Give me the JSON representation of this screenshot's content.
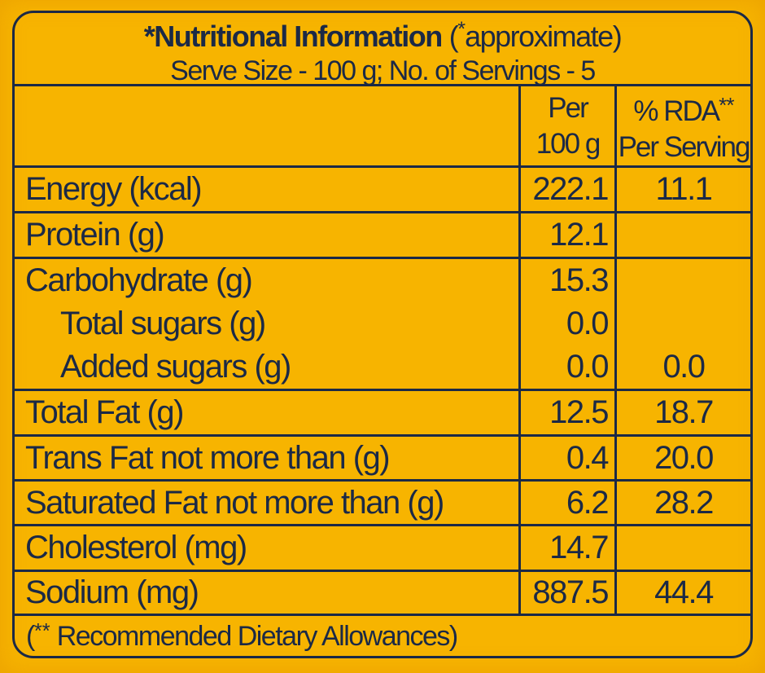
{
  "colors": {
    "background": "#F7B400",
    "ink": "#1B2946"
  },
  "header": {
    "title_bold": "*Nutritional Information",
    "approx_prefix": "(",
    "approx_sup": "*",
    "approx_suffix": "approximate)",
    "serve_info": "Serve Size - 100 g; No. of Servings - 5"
  },
  "columns": {
    "per_line1": "Per",
    "per_line2": "100 g",
    "rda_text": "% RDA",
    "rda_sup": "**",
    "rda_line2": "Per Serving"
  },
  "rows": [
    {
      "label": "Energy (kcal)",
      "per_100g": "222.1",
      "rda_per_serving": "11.1"
    },
    {
      "label": "Protein (g)",
      "per_100g": "12.1",
      "rda_per_serving": ""
    },
    {
      "label": "Carbohydrate (g)",
      "per_100g": "15.3",
      "rda_per_serving": ""
    },
    {
      "label": "Total sugars (g)",
      "per_100g": "0.0",
      "rda_per_serving": ""
    },
    {
      "label": "Added sugars (g)",
      "per_100g": "0.0",
      "rda_per_serving": "0.0"
    },
    {
      "label": "Total Fat (g)",
      "per_100g": "12.5",
      "rda_per_serving": "18.7"
    },
    {
      "label": "Trans Fat not more than (g)",
      "per_100g": "0.4",
      "rda_per_serving": "20.0"
    },
    {
      "label": "Saturated Fat not more than (g)",
      "per_100g": "6.2",
      "rda_per_serving": "28.2"
    },
    {
      "label": "Cholesterol (mg)",
      "per_100g": "14.7",
      "rda_per_serving": ""
    },
    {
      "label": "Sodium (mg)",
      "per_100g": "887.5",
      "rda_per_serving": "44.4"
    }
  ],
  "footer": {
    "prefix": "(",
    "sup": "**",
    "text": "Recommended Dietary Allowances)"
  }
}
